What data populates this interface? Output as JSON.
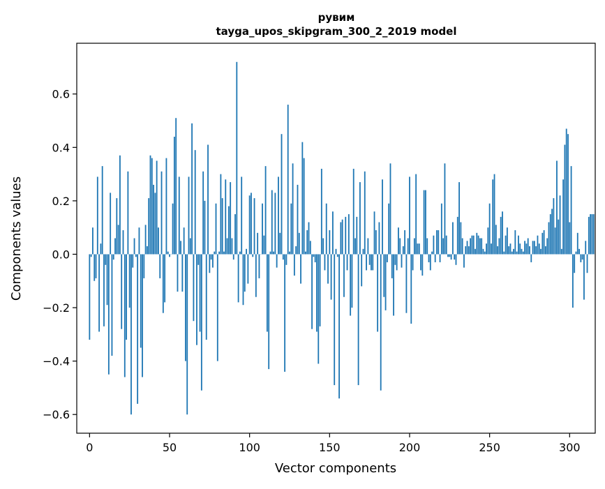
{
  "chart_data": {
    "type": "bar",
    "title": "рувим",
    "subtitle": "tayga_upos_skipgram_300_2_2019 model",
    "xlabel": "Vector components",
    "ylabel": "Components values",
    "xlim": [
      -8,
      316
    ],
    "ylim": [
      -0.67,
      0.79
    ],
    "xticks": [
      0,
      50,
      100,
      150,
      200,
      250,
      300
    ],
    "xtick_labels": [
      "0",
      "50",
      "100",
      "150",
      "200",
      "250",
      "300"
    ],
    "yticks": [
      -0.6,
      -0.4,
      -0.2,
      0.0,
      0.2,
      0.4,
      0.6
    ],
    "ytick_labels": [
      "−0.6",
      "−0.4",
      "−0.2",
      "0.0",
      "0.2",
      "0.4",
      "0.6"
    ],
    "grid": false,
    "bar_color": "#1f77b4",
    "values": [
      -0.32,
      -0.01,
      0.1,
      -0.1,
      -0.09,
      0.29,
      -0.29,
      0.04,
      0.33,
      -0.27,
      -0.04,
      -0.19,
      -0.45,
      0.23,
      -0.38,
      -0.02,
      0.06,
      0.21,
      0.11,
      0.37,
      -0.28,
      0.09,
      -0.46,
      -0.32,
      0.31,
      -0.2,
      -0.6,
      -0.05,
      0.06,
      -0.01,
      -0.56,
      0.1,
      -0.35,
      -0.46,
      -0.09,
      0.11,
      0.03,
      0.21,
      0.37,
      0.36,
      0.26,
      0.23,
      0.35,
      0.1,
      -0.09,
      0.31,
      -0.22,
      -0.18,
      0.36,
      0.01,
      -0.01,
      0.0,
      0.19,
      0.44,
      0.51,
      -0.14,
      0.29,
      0.05,
      -0.14,
      0.1,
      -0.4,
      -0.6,
      0.29,
      0.06,
      0.49,
      -0.25,
      0.39,
      -0.34,
      -0.04,
      -0.29,
      -0.51,
      0.31,
      0.2,
      -0.32,
      0.41,
      -0.07,
      -0.02,
      -0.05,
      0.01,
      0.19,
      -0.4,
      0.01,
      0.3,
      0.21,
      0.01,
      0.28,
      0.06,
      0.18,
      0.27,
      0.06,
      -0.02,
      0.15,
      0.72,
      -0.18,
      0.01,
      0.29,
      -0.19,
      -0.14,
      0.02,
      -0.11,
      0.22,
      0.23,
      -0.01,
      0.21,
      -0.16,
      0.08,
      -0.09,
      0.0,
      0.19,
      0.07,
      0.33,
      -0.29,
      -0.43,
      0.01,
      0.24,
      0.01,
      0.23,
      -0.05,
      0.29,
      0.08,
      0.45,
      -0.02,
      -0.44,
      -0.04,
      0.56,
      0.01,
      0.19,
      0.34,
      -0.08,
      0.03,
      0.26,
      0.08,
      -0.11,
      0.42,
      0.36,
      0.01,
      0.09,
      0.12,
      0.05,
      -0.28,
      -0.01,
      -0.03,
      -0.29,
      -0.41,
      -0.27,
      0.32,
      0.06,
      -0.06,
      0.19,
      -0.11,
      0.09,
      -0.17,
      0.16,
      -0.49,
      0.02,
      -0.01,
      -0.54,
      0.12,
      0.13,
      -0.16,
      0.14,
      -0.06,
      0.15,
      -0.23,
      -0.2,
      0.32,
      0.06,
      0.14,
      -0.49,
      0.27,
      -0.12,
      0.02,
      0.31,
      -0.06,
      0.06,
      -0.04,
      -0.06,
      -0.06,
      0.16,
      0.09,
      -0.29,
      0.12,
      -0.51,
      0.28,
      -0.16,
      -0.21,
      -0.03,
      0.19,
      0.34,
      -0.09,
      -0.23,
      -0.04,
      -0.06,
      0.1,
      0.06,
      -0.05,
      0.03,
      0.09,
      -0.22,
      0.06,
      0.29,
      -0.26,
      -0.06,
      0.06,
      0.3,
      0.04,
      0.04,
      -0.06,
      -0.08,
      0.24,
      0.24,
      0.06,
      -0.03,
      -0.06,
      0.01,
      0.07,
      -0.03,
      0.09,
      0.09,
      -0.03,
      0.19,
      0.06,
      0.34,
      0.07,
      -0.01,
      -0.01,
      -0.02,
      0.12,
      -0.02,
      -0.04,
      0.14,
      0.27,
      0.12,
      0.06,
      -0.05,
      0.03,
      0.05,
      0.03,
      0.06,
      0.07,
      0.07,
      0.02,
      0.08,
      0.07,
      0.06,
      0.06,
      0.02,
      0.01,
      0.04,
      0.1,
      0.19,
      0.04,
      0.28,
      0.3,
      0.11,
      0.03,
      0.06,
      0.14,
      0.16,
      0.01,
      0.07,
      0.1,
      0.03,
      0.04,
      0.01,
      0.02,
      0.09,
      0.01,
      0.07,
      0.04,
      0.02,
      0.01,
      0.05,
      0.04,
      0.06,
      0.03,
      -0.03,
      0.05,
      0.05,
      0.03,
      0.07,
      0.04,
      0.02,
      0.08,
      0.09,
      0.03,
      0.06,
      0.12,
      0.15,
      0.17,
      0.21,
      0.1,
      0.35,
      0.13,
      0.22,
      0.02,
      0.28,
      0.41,
      0.47,
      0.45,
      0.12,
      0.33,
      -0.2,
      -0.07,
      0.01,
      0.08,
      0.02,
      -0.03,
      -0.02,
      -0.17,
      0.05,
      -0.07,
      0.14,
      0.15,
      0.15,
      0.15
    ]
  }
}
